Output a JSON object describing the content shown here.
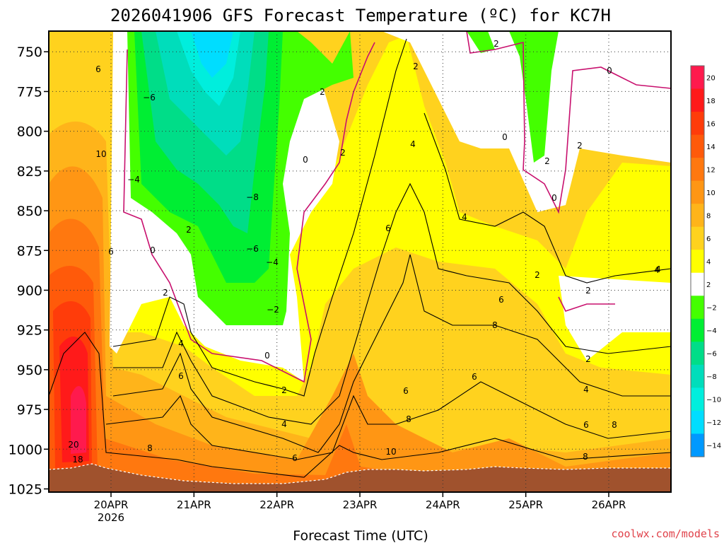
{
  "chart_data": {
    "type": "heatmap",
    "title": "2026041906 GFS Forecast Temperature (ºC) for KC7H",
    "xlabel": "Forecast Time (UTC)",
    "ylabel": "",
    "credit": "coolwx.com/models",
    "y_ticks": [
      "750",
      "775",
      "800",
      "825",
      "850",
      "875",
      "900",
      "925",
      "950",
      "975",
      "1000",
      "1025"
    ],
    "y_values": [
      750,
      775,
      800,
      825,
      850,
      875,
      900,
      925,
      950,
      975,
      1000,
      1025
    ],
    "ylim": [
      737,
      1027
    ],
    "x_ticks": [
      "20APR",
      "21APR",
      "22APR",
      "23APR",
      "24APR",
      "25APR",
      "26APR"
    ],
    "x_values_days": [
      1,
      2,
      3,
      4,
      5,
      6,
      7
    ],
    "x_year_label": "2026",
    "xlim_days": [
      0.25,
      7.75
    ],
    "colorbar": {
      "tick_labels": [
        "20",
        "18",
        "16",
        "14",
        "12",
        "10",
        "8",
        "6",
        "4",
        "2",
        "−2",
        "−4",
        "−6",
        "−8",
        "−10",
        "−12",
        "−14"
      ],
      "colors": [
        "#ff1a4d",
        "#ff1a1a",
        "#ff3c0a",
        "#ff5a0a",
        "#ff780f",
        "#ff9614",
        "#ffb41a",
        "#ffd21e",
        "#ffff00",
        "#ffffff",
        "#44ff00",
        "#00ee33",
        "#00dd88",
        "#00ddbb",
        "#00eedd",
        "#00ddff",
        "#0099ff"
      ]
    },
    "contour_labels": [
      "6",
      "10",
      "6",
      "20",
      "18",
      "−6",
      "−4",
      "2",
      "4",
      "6",
      "8",
      "0",
      "2",
      "−8",
      "−6",
      "−4",
      "−2",
      "0",
      "2",
      "4",
      "6",
      "2",
      "0",
      "2",
      "6",
      "4",
      "6",
      "8",
      "10",
      "2",
      "4",
      "6",
      "8",
      "6",
      "8",
      "4",
      "2",
      "0",
      "2",
      "0",
      "2",
      "0",
      "2",
      "4",
      "2",
      "2",
      "4",
      "6",
      "8"
    ]
  }
}
